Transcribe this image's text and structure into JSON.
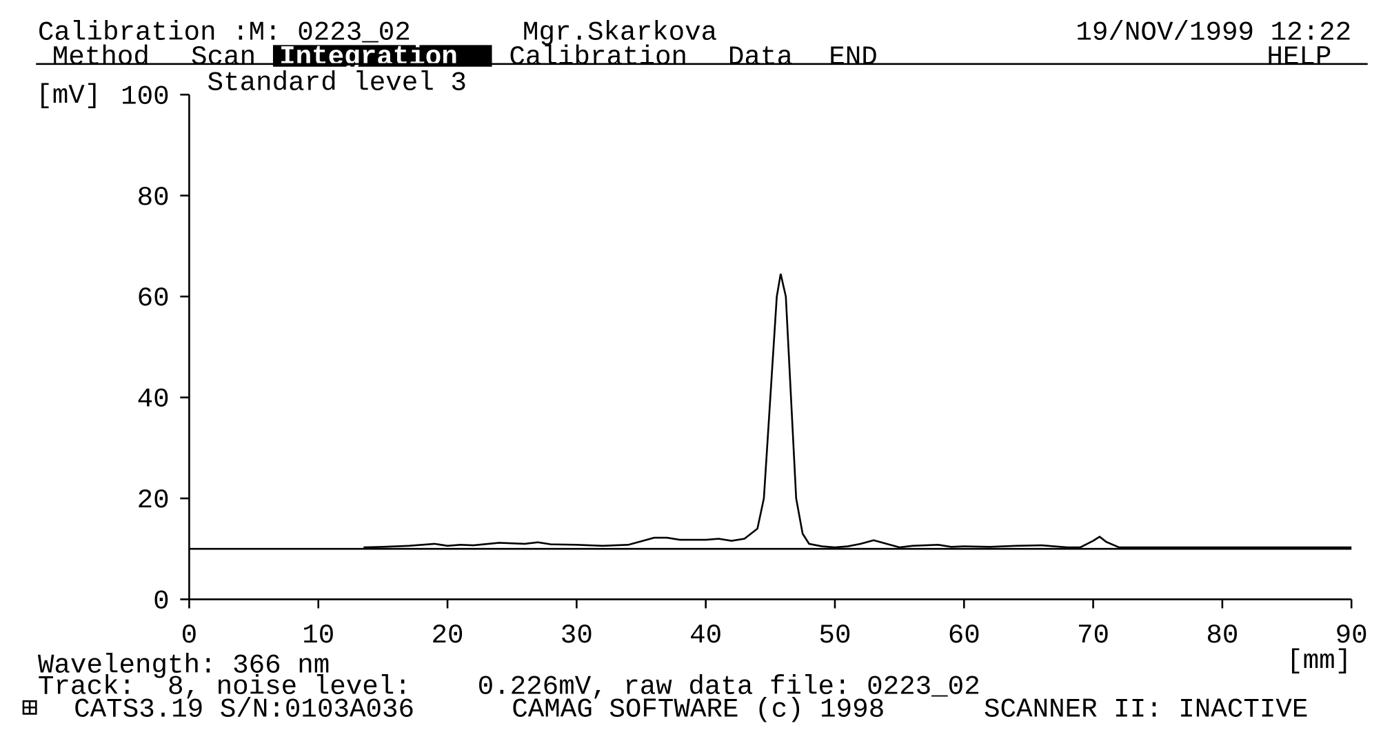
{
  "header": {
    "title": "Calibration :M: 0223_02",
    "operator": "Mgr.Skarkova",
    "datetime": "19/NOV/1999 12:22"
  },
  "menu": {
    "items": [
      "Method",
      "Scan",
      "Integration",
      "Calibration",
      "Data",
      "END"
    ],
    "help": "HELP"
  },
  "chart_data": {
    "type": "line",
    "subtitle": "Standard level 3",
    "y_label": "[mV]",
    "x_label": "[mm]",
    "color": "#000000",
    "x": [
      13.5,
      15,
      17,
      19,
      20,
      21,
      22,
      24,
      26,
      27,
      28,
      30,
      32,
      34,
      35,
      36,
      37,
      38,
      40,
      41,
      42,
      43,
      44,
      44.5,
      45,
      45.5,
      45.8,
      46.2,
      46.6,
      47,
      47.5,
      48,
      49,
      50,
      51,
      52,
      53,
      54,
      55,
      56,
      58,
      59,
      60,
      62,
      64,
      66,
      67,
      68,
      69,
      70,
      70.5,
      71,
      72,
      80,
      90
    ],
    "values": [
      10.3,
      10.4,
      10.6,
      11.0,
      10.6,
      10.8,
      10.7,
      11.2,
      11.0,
      11.3,
      10.9,
      10.8,
      10.6,
      10.8,
      11.5,
      12.2,
      12.2,
      11.8,
      11.8,
      12.0,
      11.6,
      12.0,
      14.0,
      20,
      40,
      60,
      64.5,
      60,
      40,
      20,
      13,
      11,
      10.5,
      10.3,
      10.5,
      11.0,
      11.7,
      11.0,
      10.3,
      10.6,
      10.8,
      10.4,
      10.5,
      10.4,
      10.6,
      10.7,
      10.5,
      10.3,
      10.3,
      11.6,
      12.4,
      11.4,
      10.3,
      10.3,
      10.3
    ],
    "baseline": 10,
    "xlim": [
      0,
      90
    ],
    "xticks": [
      0,
      10,
      20,
      30,
      40,
      50,
      60,
      70,
      80,
      90
    ],
    "ylim": [
      0,
      100
    ],
    "yticks": [
      0,
      20,
      40,
      60,
      80,
      100
    ]
  },
  "footer": {
    "wavelength": "Wavelength: 366 nm",
    "track": "Track:  8, noise level:",
    "noise": "0.226mV, raw data file: 0223_02",
    "version": "CATS3.19 S/N:0103A036",
    "copyright": "CAMAG SOFTWARE (c) 1998",
    "status": "SCANNER II: INACTIVE"
  }
}
